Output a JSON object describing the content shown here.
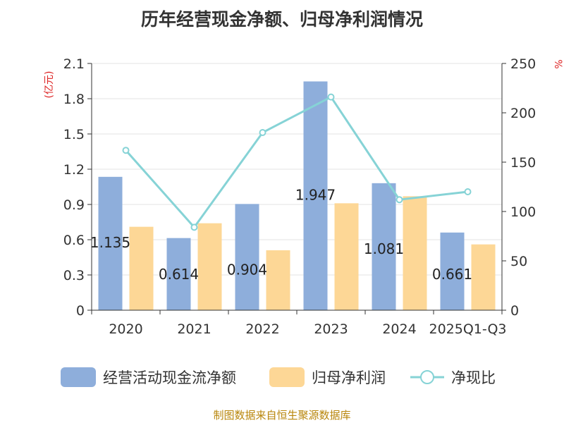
{
  "chart_data": {
    "type": "bar",
    "title": "历年经营现金净额、归母净利润情况",
    "categories": [
      "2020",
      "2021",
      "2022",
      "2023",
      "2024",
      "2025Q1-Q3"
    ],
    "series": [
      {
        "name": "经营活动现金流净额",
        "values": [
          1.135,
          0.614,
          0.904,
          1.947,
          1.081,
          0.661
        ],
        "color": "#8eaedb",
        "axis": "left"
      },
      {
        "name": "归母净利润",
        "values": [
          0.71,
          0.74,
          0.51,
          0.91,
          0.97,
          0.56
        ],
        "color": "#fdd796",
        "axis": "left"
      },
      {
        "name": "净现比",
        "type": "line",
        "values": [
          162,
          84,
          180,
          216,
          112,
          120
        ],
        "color": "#86d3d6",
        "axis": "right"
      }
    ],
    "y_left": {
      "label": "(亿元)",
      "min": 0,
      "max": 2.1,
      "ticks": [
        "0",
        "0.3",
        "0.6",
        "0.9",
        "1.2",
        "1.5",
        "1.8",
        "2.1"
      ]
    },
    "y_right": {
      "label": "%",
      "min": 0,
      "max": 250,
      "ticks": [
        "0",
        "50",
        "100",
        "150",
        "200",
        "250"
      ]
    },
    "data_labels": [
      "1.135",
      "0.614",
      "0.904",
      "1.947",
      "1.081",
      "0.661"
    ],
    "legend_position": "bottom"
  },
  "source_text": "制图数据来自恒生聚源数据库"
}
